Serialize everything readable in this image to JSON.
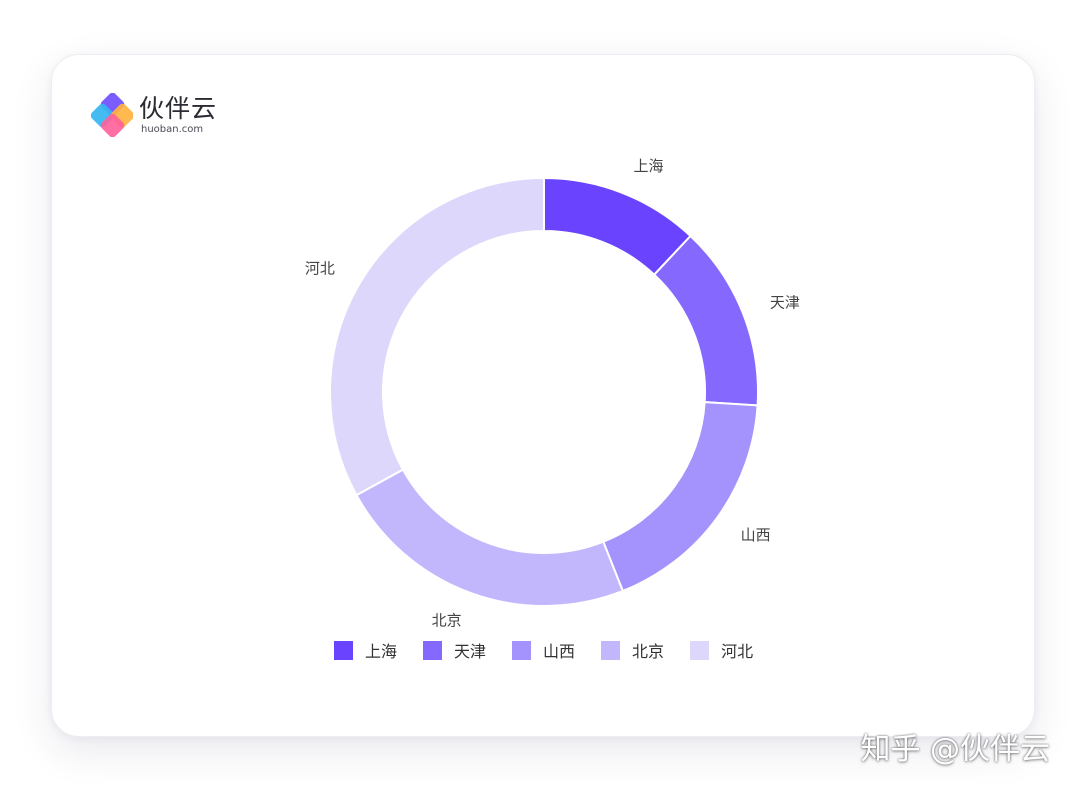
{
  "brand": {
    "name": "伙伴云",
    "domain": "huoban.com"
  },
  "chart_data": {
    "type": "pie",
    "categories": [
      "上海",
      "天津",
      "山西",
      "北京",
      "河北"
    ],
    "values": [
      12,
      14,
      18,
      23,
      33
    ],
    "colors": [
      "#6a43ff",
      "#8569ff",
      "#a493fc",
      "#c2b7fd",
      "#ddd7fc"
    ],
    "donut": true,
    "legend": "bottom",
    "slice_labels": true
  },
  "watermark": "知乎 @伙伴云"
}
